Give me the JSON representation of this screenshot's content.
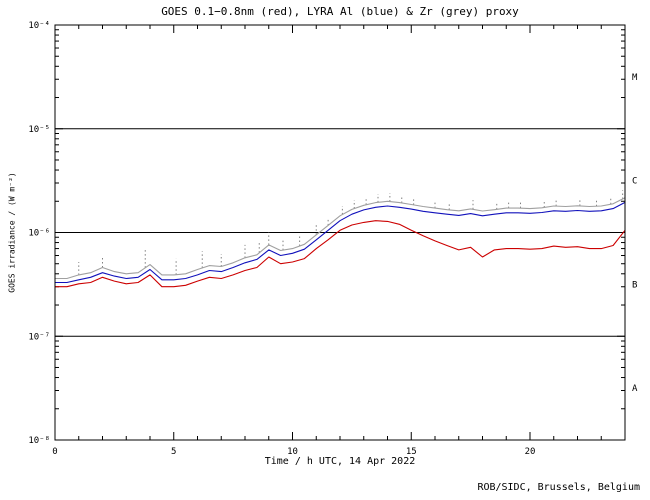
{
  "footer": "ROB/SIDC, Brussels, Belgium",
  "chart_data": {
    "type": "line",
    "title": "GOES 0.1−0.8nm (red), LYRA Al (blue) & Zr (grey) proxy",
    "xlabel": "Time / h UTC, 14 Apr 2022",
    "ylabel": "GOES irradiance / (W m⁻²)",
    "xlim": [
      0,
      24
    ],
    "x_major_ticks": [
      0,
      5,
      10,
      15,
      20
    ],
    "x_tick_labels": [
      "0",
      "5",
      "10",
      "15",
      "20"
    ],
    "x_minor_step": 1,
    "y_exp_range": [
      -8,
      -4
    ],
    "y_tick_exps": [
      -8,
      -7,
      -6,
      -5,
      -4
    ],
    "y_tick_labels": [
      "10⁻⁸",
      "10⁻⁷",
      "10⁻⁶",
      "10⁻⁵",
      "10⁻⁴"
    ],
    "class_line_exps": [
      -5,
      -6,
      -7
    ],
    "flare_classes": [
      {
        "label": "M",
        "mid_exp": -4.5
      },
      {
        "label": "C",
        "mid_exp": -5.5
      },
      {
        "label": "B",
        "mid_exp": -6.5
      },
      {
        "label": "A",
        "mid_exp": -7.5
      }
    ],
    "units_note": "values_e7 and peak_e7 are in units of 1e-7 W m-2",
    "x": [
      0,
      0.5,
      1,
      1.5,
      2,
      2.5,
      3,
      3.5,
      4,
      4.5,
      5,
      5.5,
      6,
      6.5,
      7,
      7.5,
      8,
      8.5,
      9,
      9.5,
      10,
      10.5,
      11,
      11.5,
      12,
      12.5,
      13,
      13.5,
      14,
      14.5,
      15,
      15.5,
      16,
      16.5,
      17,
      17.5,
      18,
      18.5,
      19,
      19.5,
      20,
      20.5,
      21,
      21.5,
      22,
      22.5,
      23,
      23.5,
      24
    ],
    "series": [
      {
        "name": "GOES 0.1-0.8nm (red)",
        "color": "#cc0000",
        "values_e7": [
          3.0,
          3.0,
          3.2,
          3.3,
          3.7,
          3.4,
          3.2,
          3.3,
          3.9,
          3.0,
          3.0,
          3.1,
          3.4,
          3.7,
          3.6,
          3.9,
          4.3,
          4.6,
          5.8,
          5.0,
          5.2,
          5.6,
          7.0,
          8.5,
          10.5,
          11.8,
          12.5,
          13.0,
          12.8,
          12.0,
          10.5,
          9.3,
          8.3,
          7.5,
          6.8,
          7.2,
          5.8,
          6.8,
          7.0,
          7.0,
          6.9,
          7.0,
          7.4,
          7.2,
          7.3,
          7.0,
          7.0,
          7.5,
          10.5
        ]
      },
      {
        "name": "LYRA Al proxy (blue)",
        "color": "#1111bb",
        "values_e7": [
          3.3,
          3.3,
          3.5,
          3.7,
          4.1,
          3.8,
          3.6,
          3.7,
          4.4,
          3.5,
          3.5,
          3.6,
          3.9,
          4.3,
          4.2,
          4.6,
          5.1,
          5.5,
          6.8,
          6.0,
          6.3,
          6.9,
          8.5,
          10.5,
          13.0,
          15.0,
          16.5,
          17.5,
          18.0,
          17.5,
          16.8,
          16.0,
          15.5,
          15.0,
          14.6,
          15.2,
          14.5,
          15.0,
          15.5,
          15.5,
          15.3,
          15.6,
          16.2,
          16.0,
          16.3,
          16.0,
          16.2,
          17.0,
          19.5
        ]
      },
      {
        "name": "LYRA Zr proxy (grey)",
        "color": "#a0a0a0",
        "values_e7": [
          3.6,
          3.6,
          3.9,
          4.1,
          4.6,
          4.2,
          4.0,
          4.1,
          4.9,
          3.9,
          3.9,
          4.0,
          4.4,
          4.8,
          4.7,
          5.1,
          5.7,
          6.1,
          7.6,
          6.7,
          7.0,
          7.7,
          9.5,
          11.7,
          14.5,
          16.7,
          18.3,
          19.4,
          20.0,
          19.4,
          18.6,
          17.8,
          17.2,
          16.6,
          16.2,
          16.9,
          16.1,
          16.6,
          17.2,
          17.2,
          17.0,
          17.3,
          18.0,
          17.8,
          18.1,
          17.8,
          18.0,
          18.9,
          21.6
        ]
      }
    ],
    "spikes": {
      "color": "#808080",
      "points": [
        {
          "x": 1.0,
          "peak_e7": 5.2
        },
        {
          "x": 2.0,
          "peak_e7": 6.0
        },
        {
          "x": 3.8,
          "peak_e7": 7.0
        },
        {
          "x": 5.1,
          "peak_e7": 5.6
        },
        {
          "x": 6.2,
          "peak_e7": 6.6
        },
        {
          "x": 7.0,
          "peak_e7": 6.2
        },
        {
          "x": 8.0,
          "peak_e7": 7.6
        },
        {
          "x": 8.6,
          "peak_e7": 8.2
        },
        {
          "x": 9.0,
          "peak_e7": 10.0
        },
        {
          "x": 9.6,
          "peak_e7": 8.6
        },
        {
          "x": 10.3,
          "peak_e7": 9.2
        },
        {
          "x": 11.0,
          "peak_e7": 12.0
        },
        {
          "x": 11.5,
          "peak_e7": 14.0
        },
        {
          "x": 12.1,
          "peak_e7": 18.0
        },
        {
          "x": 12.6,
          "peak_e7": 20.5
        },
        {
          "x": 13.1,
          "peak_e7": 22.0
        },
        {
          "x": 13.6,
          "peak_e7": 23.5
        },
        {
          "x": 14.1,
          "peak_e7": 24.0
        },
        {
          "x": 14.6,
          "peak_e7": 23.0
        },
        {
          "x": 15.1,
          "peak_e7": 22.0
        },
        {
          "x": 16.0,
          "peak_e7": 20.5
        },
        {
          "x": 16.6,
          "peak_e7": 19.5
        },
        {
          "x": 17.6,
          "peak_e7": 20.5
        },
        {
          "x": 18.6,
          "peak_e7": 19.5
        },
        {
          "x": 19.1,
          "peak_e7": 20.0
        },
        {
          "x": 19.6,
          "peak_e7": 19.8
        },
        {
          "x": 20.6,
          "peak_e7": 20.0
        },
        {
          "x": 21.1,
          "peak_e7": 21.0
        },
        {
          "x": 22.1,
          "peak_e7": 21.0
        },
        {
          "x": 22.8,
          "peak_e7": 21.0
        },
        {
          "x": 23.4,
          "peak_e7": 22.0
        },
        {
          "x": 23.9,
          "peak_e7": 25.5
        }
      ]
    }
  }
}
